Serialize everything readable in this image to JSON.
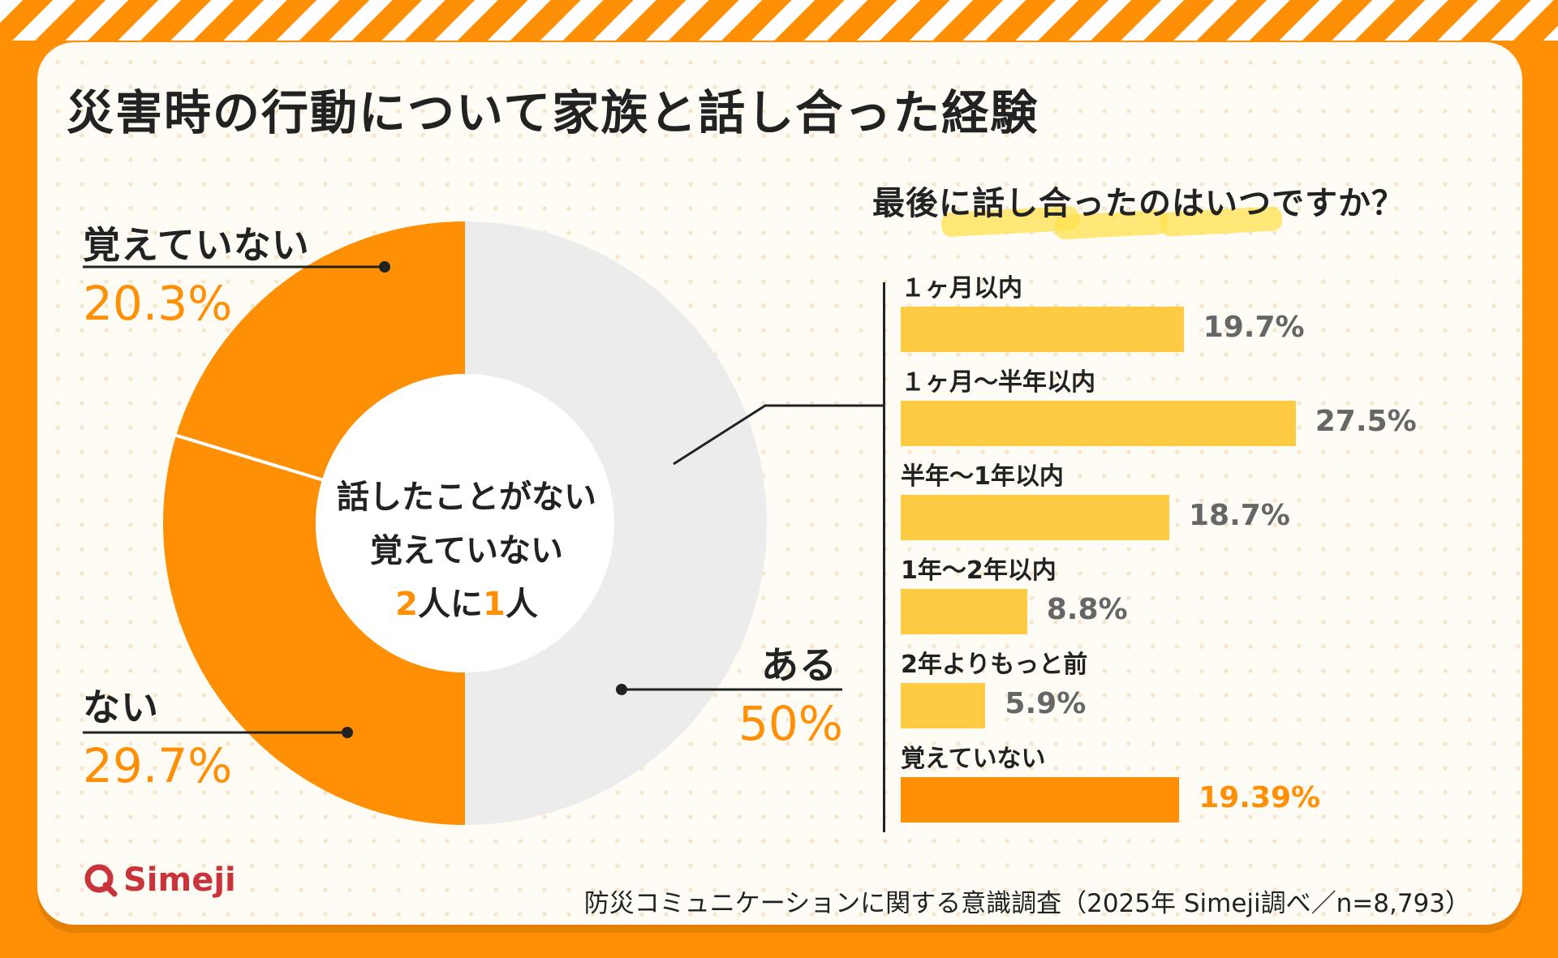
{
  "title": "災害時の行動について家族と話し合った経験",
  "colors": {
    "orange": "#ff8f05",
    "gray_segment": "#ececec",
    "yellow_bar": "#fecb42",
    "text_dark": "#222222",
    "value_gray": "#666666"
  },
  "center": {
    "line1": "話したことがない",
    "line2": "覚えていない",
    "num1": "2",
    "text1": "人に",
    "num2": "1",
    "text2": "人"
  },
  "bar_title": "最後に話し合ったのはいつですか？",
  "chart_data": [
    {
      "type": "pie",
      "title": "災害時の行動について家族と話し合った経験",
      "slices": [
        {
          "label": "ある",
          "value": 50,
          "display": "50%",
          "color": "#ececec"
        },
        {
          "label": "ない",
          "value": 29.7,
          "display": "29.7%",
          "color": "#ff8f05"
        },
        {
          "label": "覚えていない",
          "value": 20.3,
          "display": "20.3%",
          "color": "#ff8f05"
        }
      ]
    },
    {
      "type": "bar",
      "orientation": "horizontal",
      "title": "最後に話し合ったのはいつですか？",
      "categories": [
        "１ヶ月以内",
        "１ヶ月〜半年以内",
        "半年〜1年以内",
        "1年〜2年以内",
        "2年よりもっと前",
        "覚えていない"
      ],
      "values": [
        19.7,
        27.5,
        18.7,
        8.8,
        5.9,
        19.39
      ],
      "labels": [
        "19.7%",
        "27.5%",
        "18.7%",
        "8.8%",
        "5.9%",
        "19.39%"
      ],
      "colors": [
        "#fecb42",
        "#fecb42",
        "#fecb42",
        "#fecb42",
        "#fecb42",
        "#ff8f05"
      ]
    }
  ],
  "footer": {
    "brand": "Simeji",
    "logo_icon": "simeji-q-logo-icon",
    "note": "防災コミュニケーションに関する意識調査（2025年 Simeji調べ／n=8,793）"
  }
}
